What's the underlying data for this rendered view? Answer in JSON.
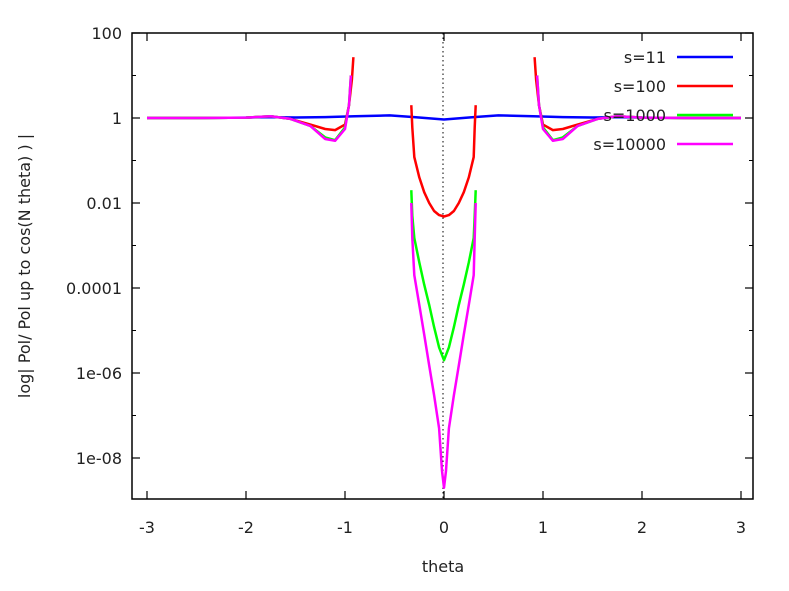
{
  "chart_data": {
    "type": "line",
    "xlabel": "theta",
    "ylabel": "log| Pol/ Pol up to cos(N theta) ) |",
    "xlim": [
      -3.1,
      3.1
    ],
    "ylim": [
      1e-09,
      100
    ],
    "y_scale": "log",
    "xticks": [
      -3,
      -2,
      -1,
      0,
      1,
      2,
      3
    ],
    "xtick_labels": [
      "-3",
      "-2",
      "-1",
      "0",
      "1",
      "2",
      "3"
    ],
    "yticks": [
      1e-08,
      1e-06,
      0.0001,
      0.01,
      1,
      100
    ],
    "ytick_labels": [
      "1e-08",
      "1e-06",
      "0.0001",
      "0.01",
      "1",
      "100"
    ],
    "legend_position": "top-right",
    "zero_line": "dotted vertical at theta=0",
    "series": [
      {
        "name": "s=11",
        "color": "#0000ff",
        "segments": [
          [
            [
              -3.0,
              1.0
            ],
            [
              -2.5,
              1.0
            ],
            [
              -2.0,
              1.02
            ],
            [
              -1.8,
              1.05
            ],
            [
              -1.5,
              1.03
            ],
            [
              -1.2,
              1.05
            ],
            [
              -0.9,
              1.1
            ],
            [
              -0.55,
              1.15
            ],
            [
              -0.3,
              1.05
            ],
            [
              0.0,
              0.92
            ],
            [
              0.3,
              1.05
            ],
            [
              0.55,
              1.15
            ],
            [
              0.9,
              1.1
            ],
            [
              1.2,
              1.05
            ],
            [
              1.5,
              1.03
            ],
            [
              1.8,
              1.05
            ],
            [
              2.0,
              1.02
            ],
            [
              2.5,
              1.0
            ],
            [
              3.0,
              1.0
            ]
          ]
        ]
      },
      {
        "name": "s=100",
        "color": "#ff0000",
        "segments": [
          [
            [
              -3.0,
              1.0
            ],
            [
              -2.5,
              1.0
            ],
            [
              -2.0,
              1.02
            ],
            [
              -1.75,
              1.1
            ],
            [
              -1.55,
              0.95
            ],
            [
              -1.35,
              0.7
            ],
            [
              -1.2,
              0.55
            ],
            [
              -1.1,
              0.52
            ],
            [
              -1.0,
              0.7
            ],
            [
              -0.96,
              2.0
            ],
            [
              -0.93,
              8.0
            ],
            [
              -0.915,
              27.0
            ]
          ],
          [
            [
              -0.33,
              2.0
            ],
            [
              -0.32,
              0.6
            ],
            [
              -0.3,
              0.12
            ],
            [
              -0.25,
              0.04
            ],
            [
              -0.2,
              0.018
            ],
            [
              -0.15,
              0.01
            ],
            [
              -0.1,
              0.0065
            ],
            [
              -0.05,
              0.0052
            ],
            [
              0.0,
              0.0048
            ],
            [
              0.05,
              0.0052
            ],
            [
              0.1,
              0.0065
            ],
            [
              0.15,
              0.01
            ],
            [
              0.2,
              0.018
            ],
            [
              0.25,
              0.04
            ],
            [
              0.3,
              0.12
            ],
            [
              0.31,
              0.6
            ],
            [
              0.32,
              2.0
            ]
          ],
          [
            [
              0.915,
              27.0
            ],
            [
              0.93,
              8.0
            ],
            [
              0.96,
              2.0
            ],
            [
              1.0,
              0.7
            ],
            [
              1.1,
              0.52
            ],
            [
              1.2,
              0.55
            ],
            [
              1.35,
              0.7
            ],
            [
              1.55,
              0.95
            ],
            [
              1.75,
              1.1
            ],
            [
              2.0,
              1.02
            ],
            [
              2.5,
              1.0
            ],
            [
              3.0,
              1.0
            ]
          ]
        ]
      },
      {
        "name": "s=1000",
        "color": "#00ff00",
        "segments": [
          [
            [
              -3.0,
              1.0
            ],
            [
              -2.5,
              1.0
            ],
            [
              -2.0,
              1.02
            ],
            [
              -1.75,
              1.1
            ],
            [
              -1.55,
              0.95
            ],
            [
              -1.35,
              0.65
            ],
            [
              -1.2,
              0.35
            ],
            [
              -1.1,
              0.3
            ],
            [
              -1.0,
              0.6
            ],
            [
              -0.96,
              2.0
            ],
            [
              -0.94,
              10.0
            ]
          ],
          [
            [
              -0.33,
              0.02
            ],
            [
              -0.32,
              0.005
            ],
            [
              -0.3,
              0.0015
            ],
            [
              -0.25,
              0.0004
            ],
            [
              -0.2,
              0.00012
            ],
            [
              -0.15,
              4e-05
            ],
            [
              -0.1,
              1.2e-05
            ],
            [
              -0.05,
              4e-06
            ],
            [
              0.0,
              2e-06
            ],
            [
              0.05,
              4e-06
            ],
            [
              0.1,
              1.2e-05
            ],
            [
              0.15,
              4e-05
            ],
            [
              0.2,
              0.00012
            ],
            [
              0.25,
              0.0004
            ],
            [
              0.3,
              0.0015
            ],
            [
              0.31,
              0.005
            ],
            [
              0.32,
              0.02
            ]
          ],
          [
            [
              0.94,
              10.0
            ],
            [
              0.96,
              2.0
            ],
            [
              1.0,
              0.6
            ],
            [
              1.1,
              0.3
            ],
            [
              1.2,
              0.35
            ],
            [
              1.35,
              0.65
            ],
            [
              1.55,
              0.95
            ],
            [
              1.75,
              1.1
            ],
            [
              2.0,
              1.02
            ],
            [
              2.5,
              1.0
            ],
            [
              3.0,
              1.0
            ]
          ]
        ]
      },
      {
        "name": "s=10000",
        "color": "#ff00ff",
        "segments": [
          [
            [
              -3.0,
              1.0
            ],
            [
              -2.5,
              1.0
            ],
            [
              -2.0,
              1.02
            ],
            [
              -1.75,
              1.1
            ],
            [
              -1.55,
              0.95
            ],
            [
              -1.35,
              0.65
            ],
            [
              -1.2,
              0.32
            ],
            [
              -1.1,
              0.29
            ],
            [
              -1.0,
              0.55
            ],
            [
              -0.96,
              2.0
            ],
            [
              -0.94,
              10.0
            ]
          ],
          [
            [
              -0.33,
              0.01
            ],
            [
              -0.32,
              0.0015
            ],
            [
              -0.3,
              0.0002
            ],
            [
              -0.25,
              4e-05
            ],
            [
              -0.2,
              8e-06
            ],
            [
              -0.15,
              1.5e-06
            ],
            [
              -0.1,
              3e-07
            ],
            [
              -0.05,
              5e-08
            ],
            [
              -0.02,
              5e-09
            ],
            [
              0.0,
              2e-09
            ],
            [
              0.02,
              5e-09
            ],
            [
              0.05,
              5e-08
            ],
            [
              0.1,
              3e-07
            ],
            [
              0.15,
              1.5e-06
            ],
            [
              0.2,
              8e-06
            ],
            [
              0.25,
              4e-05
            ],
            [
              0.3,
              0.0002
            ],
            [
              0.31,
              0.0015
            ],
            [
              0.32,
              0.01
            ]
          ],
          [
            [
              0.94,
              10.0
            ],
            [
              0.96,
              2.0
            ],
            [
              1.0,
              0.55
            ],
            [
              1.1,
              0.29
            ],
            [
              1.2,
              0.32
            ],
            [
              1.35,
              0.65
            ],
            [
              1.55,
              0.95
            ],
            [
              1.75,
              1.1
            ],
            [
              2.0,
              1.02
            ],
            [
              2.5,
              1.0
            ],
            [
              3.0,
              1.0
            ]
          ]
        ]
      }
    ]
  }
}
